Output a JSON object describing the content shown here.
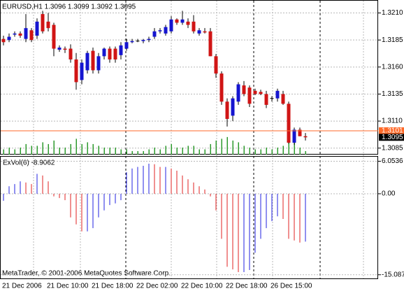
{
  "chart_data": [
    {
      "type": "candlestick",
      "title": "EURUSD,H1 1.3096 1.3099 1.3092 1.3095",
      "x": [
        "21 Dec 2006",
        null,
        null,
        null,
        null,
        null,
        null,
        null,
        "21 Dec 10:00",
        null,
        null,
        null,
        null,
        null,
        null,
        null,
        "21 Dec 18:00",
        null,
        null,
        null,
        null,
        null,
        null,
        null,
        "22 Dec 02:00",
        null,
        null,
        null,
        null,
        null,
        null,
        null,
        "22 Dec 10:00",
        null,
        null,
        null,
        null,
        null,
        null,
        null,
        "22 Dec 18:00",
        null,
        null,
        null,
        null,
        null,
        null,
        null,
        "26 Dec 15:00",
        null,
        null,
        null,
        null,
        null,
        null
      ],
      "open": [
        1.3186,
        1.3185,
        1.319,
        1.3191,
        1.3186,
        1.3194,
        1.3189,
        1.3209,
        1.3202,
        1.3199,
        1.3176,
        1.3177,
        1.3177,
        1.3167,
        1.3148,
        1.3157,
        1.3175,
        1.3157,
        1.317,
        1.3177,
        1.3177,
        1.3171,
        1.3177,
        1.3183,
        1.3184,
        1.3184,
        1.3185,
        1.3188,
        1.3193,
        1.3191,
        1.3193,
        1.3204,
        1.3201,
        1.3202,
        1.3202,
        1.3191,
        1.3193,
        1.3193,
        1.317,
        1.3154,
        1.3128,
        1.3115,
        1.3128,
        1.3143,
        1.3141,
        1.3138,
        1.3137,
        1.3135,
        1.3131,
        1.3131,
        1.3135,
        1.3126,
        1.309,
        1.3102,
        1.3096
      ],
      "high": [
        1.3189,
        1.3191,
        1.3193,
        1.3193,
        1.3209,
        1.3196,
        1.3205,
        1.3212,
        1.321,
        1.3201,
        1.318,
        1.3179,
        1.3181,
        1.3173,
        1.3167,
        1.3175,
        1.3178,
        1.3173,
        1.3178,
        1.3179,
        1.3179,
        1.3183,
        1.3186,
        1.3186,
        1.3186,
        1.3186,
        1.3188,
        1.3196,
        1.3196,
        1.3199,
        1.3207,
        1.3205,
        1.3212,
        1.3205,
        1.3208,
        1.3196,
        1.3196,
        1.3196,
        1.3172,
        1.3156,
        1.3131,
        1.3133,
        1.3146,
        1.3147,
        1.3143,
        1.314,
        1.3139,
        1.3138,
        1.3133,
        1.314,
        1.3138,
        1.3128,
        1.3104,
        1.3104,
        1.3099
      ],
      "low": [
        1.318,
        1.3183,
        1.3188,
        1.3187,
        1.3183,
        1.3183,
        1.3186,
        1.3191,
        1.3193,
        1.317,
        1.3174,
        1.3173,
        1.3164,
        1.3139,
        1.3144,
        1.3154,
        1.3154,
        1.3154,
        1.3167,
        1.3164,
        1.3164,
        1.3167,
        1.3175,
        1.3182,
        1.3183,
        1.3182,
        1.3183,
        1.3186,
        1.3191,
        1.3189,
        1.3191,
        1.3199,
        1.3199,
        1.3196,
        1.3191,
        1.3189,
        1.3191,
        1.317,
        1.315,
        1.3125,
        1.3105,
        1.311,
        1.3125,
        1.3133,
        1.3123,
        1.3134,
        1.3134,
        1.3122,
        1.3128,
        1.3128,
        1.3125,
        1.3089,
        1.3088,
        1.3096,
        1.3092
      ],
      "close": [
        1.3183,
        1.3188,
        1.3191,
        1.3189,
        1.3196,
        1.3185,
        1.3202,
        1.3193,
        1.3196,
        1.3177,
        1.3178,
        1.3176,
        1.3167,
        1.3146,
        1.3164,
        1.3173,
        1.3157,
        1.317,
        1.3177,
        1.3167,
        1.3167,
        1.318,
        1.3183,
        1.3184,
        1.3184,
        1.3185,
        1.3186,
        1.3193,
        1.3194,
        1.3197,
        1.3204,
        1.3201,
        1.3204,
        1.3199,
        1.3193,
        1.3194,
        1.3192,
        1.317,
        1.3154,
        1.3128,
        1.3112,
        1.3131,
        1.3144,
        1.3135,
        1.3126,
        1.3135,
        1.3135,
        1.3125,
        1.3131,
        1.3138,
        1.3126,
        1.309,
        1.3102,
        1.3096,
        1.3095
      ],
      "up_color": "#1515d0",
      "down_color": "#d01515",
      "ylim": [
        1.3079,
        1.3222
      ],
      "yticks": [
        {
          "value": 1.321,
          "label": "1.3210"
        },
        {
          "value": 1.3185,
          "label": "1.3185"
        },
        {
          "value": 1.316,
          "label": "1.3160"
        },
        {
          "value": 1.3135,
          "label": "1.3135"
        },
        {
          "value": 1.311,
          "label": "1.3110"
        },
        {
          "value": 1.3085,
          "label": "1.3085"
        }
      ],
      "grid": true,
      "volume": [
        3,
        4,
        3,
        4,
        6,
        5,
        5,
        7,
        6,
        8,
        4,
        4,
        6,
        9,
        6,
        7,
        6,
        5,
        4,
        4,
        4,
        3,
        3,
        2,
        2,
        2,
        3,
        4,
        3,
        5,
        6,
        4,
        4,
        5,
        5,
        3,
        3,
        6,
        8,
        9,
        10,
        8,
        7,
        5,
        4,
        3,
        3,
        4,
        3,
        4,
        5,
        10,
        8,
        4,
        2
      ],
      "volume_color": "#2e9a2e",
      "vlim": [
        0,
        88
      ],
      "ask_line": {
        "value": 1.3101,
        "label": "1.3101",
        "color": "#ff6a2a"
      },
      "bid": {
        "value": 1.3095,
        "label": "1.3095"
      }
    },
    {
      "type": "bar",
      "title": "ExVol(6) -8.9062",
      "values": [
        -1.3,
        1.4,
        1.8,
        2.3,
        2.1,
        1.8,
        3.7,
        3.4,
        2.3,
        -0.5,
        -0.8,
        -1.2,
        -4.4,
        -5.7,
        -7.0,
        -7.0,
        -6.4,
        -4.4,
        -3.1,
        -2.1,
        -1.8,
        -1.2,
        4.0,
        4.7,
        5.0,
        5.2,
        5.6,
        5.5,
        5.0,
        5.0,
        4.7,
        4.3,
        3.4,
        2.7,
        2.1,
        1.4,
        0.8,
        -0.5,
        -3.1,
        -8.4,
        -13.6,
        -14.1,
        -14.6,
        -14.6,
        -14.2,
        -11.0,
        -8.4,
        -6.4,
        -5.1,
        -4.2,
        -4.7,
        -8.4,
        -8.7,
        -9.1,
        -8.9062
      ],
      "up_color": "#2020e0",
      "down_color": "#e02020",
      "ylim": [
        -15.9,
        6.9
      ],
      "yticks": [
        6.0536,
        {
          "value": 0,
          "label": "0.00"
        },
        -15.0879
      ],
      "grid": true
    }
  ],
  "footer": "MetaTrader, © 2001-2006 MetaQuotes Software Corp."
}
